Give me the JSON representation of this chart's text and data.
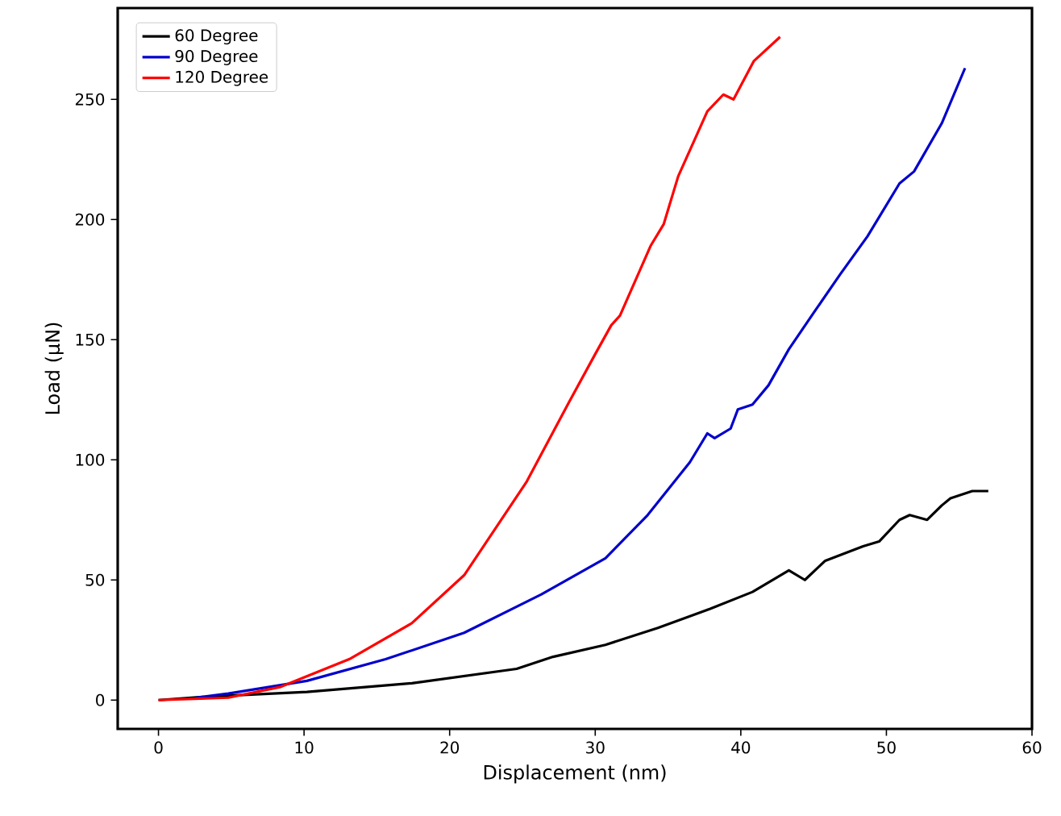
{
  "chart_data": {
    "type": "line",
    "xlabel": "Displacement (nm)",
    "ylabel": "Load (μN)",
    "xlim": [
      -2.8,
      60
    ],
    "ylim": [
      -12,
      288
    ],
    "xticks": [
      0,
      10,
      20,
      30,
      40,
      50,
      60
    ],
    "yticks": [
      0,
      50,
      100,
      150,
      200,
      250
    ],
    "legend": "top left",
    "grid": false,
    "marker": "none",
    "line_style": "solid",
    "series": [
      {
        "name": "60 Degree",
        "color": "#000000",
        "x": [
          0,
          3.0,
          10.2,
          17.4,
          24.6,
          27.1,
          30.7,
          34.3,
          37.9,
          40.8,
          43.3,
          44.4,
          45.8,
          48.4,
          49.5,
          50.9,
          51.6,
          52.8,
          53.8,
          54.4,
          55.9,
          57.0
        ],
        "values": [
          0,
          1.3,
          3.4,
          7,
          13,
          18,
          23,
          30,
          38,
          45,
          54,
          50,
          58,
          64,
          66,
          75,
          77,
          75,
          81,
          84,
          87,
          87
        ]
      },
      {
        "name": "90 Degree",
        "color": "#0000cc",
        "x": [
          2.6,
          4.8,
          10.2,
          15.6,
          21.0,
          26.3,
          30.7,
          33.6,
          36.5,
          37.7,
          38.2,
          39.3,
          39.8,
          40.8,
          41.9,
          43.3,
          45.1,
          46.8,
          48.7,
          50.9,
          51.9,
          53.8,
          55.4
        ],
        "values": [
          1,
          2.7,
          8,
          17,
          28,
          44,
          59,
          77,
          99,
          111,
          109,
          113,
          121,
          123,
          131,
          146,
          162,
          177,
          193,
          215,
          220,
          240,
          263
        ]
      },
      {
        "name": "120 Degree",
        "color": "#ff0000",
        "x": [
          0,
          4.8,
          8.4,
          13.1,
          17.4,
          21.0,
          25.3,
          28.2,
          30.0,
          31.1,
          31.7,
          33.8,
          34.7,
          35.7,
          37.7,
          38.8,
          39.5,
          40.9,
          42.7
        ],
        "values": [
          0,
          1,
          5.5,
          17,
          32,
          52,
          91,
          124,
          144,
          156,
          160,
          189,
          198,
          218,
          245,
          252,
          250,
          266,
          276
        ]
      }
    ]
  }
}
